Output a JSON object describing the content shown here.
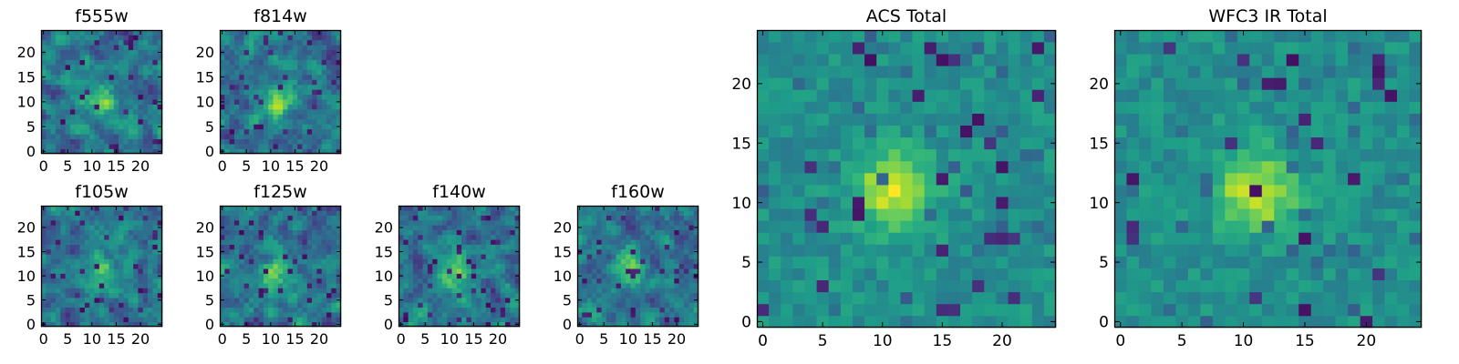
{
  "chart_data": [
    {
      "type": "heatmap",
      "title": "f555w",
      "colormap": "viridis",
      "shape": [
        25,
        25
      ],
      "pattern": "noisy",
      "xticks": [
        0,
        5,
        10,
        15,
        20
      ],
      "yticks": [
        0,
        5,
        10,
        15,
        20
      ],
      "xlim": [
        -0.5,
        24.5
      ],
      "ylim": [
        -0.5,
        24.5
      ],
      "bright_center": [
        12,
        10
      ]
    },
    {
      "type": "heatmap",
      "title": "f814w",
      "colormap": "viridis",
      "shape": [
        25,
        25
      ],
      "pattern": "noisy",
      "xticks": [
        0,
        5,
        10,
        15,
        20
      ],
      "yticks": [
        0,
        5,
        10,
        15,
        20
      ],
      "xlim": [
        -0.5,
        24.5
      ],
      "ylim": [
        -0.5,
        24.5
      ],
      "bright_center": [
        11,
        10
      ]
    },
    {
      "type": "heatmap",
      "title": "f105w",
      "colormap": "viridis",
      "shape": [
        25,
        25
      ],
      "pattern": "noisy",
      "xticks": [
        0,
        5,
        10,
        15,
        20
      ],
      "yticks": [
        0,
        5,
        10,
        15,
        20
      ],
      "xlim": [
        -0.5,
        24.5
      ],
      "ylim": [
        -0.5,
        24.5
      ],
      "bright_center": [
        12,
        10
      ]
    },
    {
      "type": "heatmap",
      "title": "f125w",
      "colormap": "viridis",
      "shape": [
        25,
        25
      ],
      "pattern": "noisy",
      "xticks": [
        0,
        5,
        10,
        15,
        20
      ],
      "yticks": [
        0,
        5,
        10,
        15,
        20
      ],
      "xlim": [
        -0.5,
        24.5
      ],
      "ylim": [
        -0.5,
        24.5
      ],
      "bright_center": [
        11,
        10
      ]
    },
    {
      "type": "heatmap",
      "title": "f140w",
      "colormap": "viridis",
      "shape": [
        25,
        25
      ],
      "pattern": "noisy",
      "xticks": [
        0,
        5,
        10,
        15,
        20
      ],
      "yticks": [
        0,
        5,
        10,
        15,
        20
      ],
      "xlim": [
        -0.5,
        24.5
      ],
      "ylim": [
        -0.5,
        24.5
      ],
      "bright_center": [
        11,
        11
      ]
    },
    {
      "type": "heatmap",
      "title": "f160w",
      "colormap": "viridis",
      "shape": [
        25,
        25
      ],
      "pattern": "noisy",
      "xticks": [
        0,
        5,
        10,
        15,
        20
      ],
      "yticks": [
        0,
        5,
        10,
        15,
        20
      ],
      "xlim": [
        -0.5,
        24.5
      ],
      "ylim": [
        -0.5,
        24.5
      ],
      "bright_center": [
        10,
        11
      ]
    },
    {
      "type": "heatmap",
      "title": "ACS Total",
      "colormap": "viridis",
      "shape": [
        25,
        25
      ],
      "pattern": "smooth",
      "xticks": [
        0,
        5,
        10,
        15,
        20
      ],
      "yticks": [
        0,
        5,
        10,
        15,
        20
      ],
      "xlim": [
        -0.5,
        24.5
      ],
      "ylim": [
        -0.5,
        24.5
      ],
      "bright_center": [
        11,
        11
      ]
    },
    {
      "type": "heatmap",
      "title": "WFC3 IR Total",
      "colormap": "viridis",
      "shape": [
        25,
        25
      ],
      "pattern": "smooth",
      "xticks": [
        0,
        5,
        10,
        15,
        20
      ],
      "yticks": [
        0,
        5,
        10,
        15,
        20
      ],
      "xlim": [
        -0.5,
        24.5
      ],
      "ylim": [
        -0.5,
        24.5
      ],
      "bright_center": [
        11,
        11
      ]
    }
  ]
}
